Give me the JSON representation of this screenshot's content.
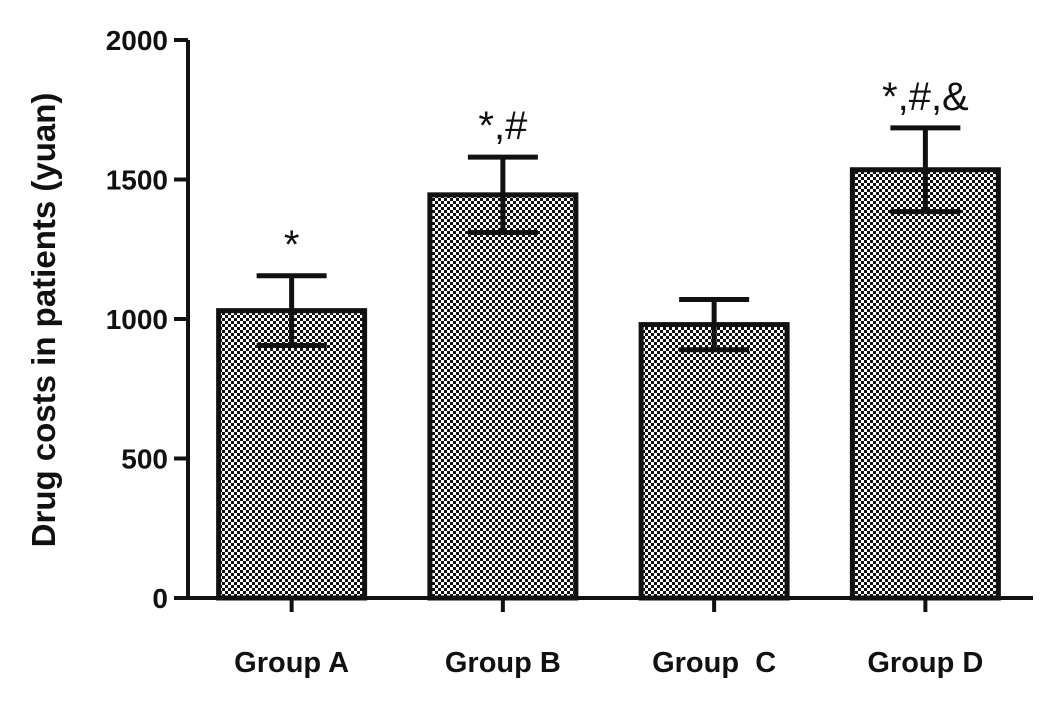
{
  "chart_data": {
    "type": "bar",
    "title": "",
    "xlabel": "",
    "ylabel": "Drug costs in patients (yuan)",
    "ylim": [
      0,
      2000
    ],
    "yticks": [
      0,
      500,
      1000,
      1500,
      2000
    ],
    "grid": false,
    "categories": [
      "Group A",
      "Group B",
      "Group  C",
      "Group D"
    ],
    "values": [
      1030,
      1445,
      980,
      1535
    ],
    "errors": [
      125,
      135,
      90,
      150
    ],
    "annotations": [
      "*",
      "*,#",
      "",
      "*,#,&"
    ],
    "colors": {
      "bar_fill": "#bdbdbd",
      "pattern_dark": "#111111",
      "axis": "#111111"
    }
  }
}
